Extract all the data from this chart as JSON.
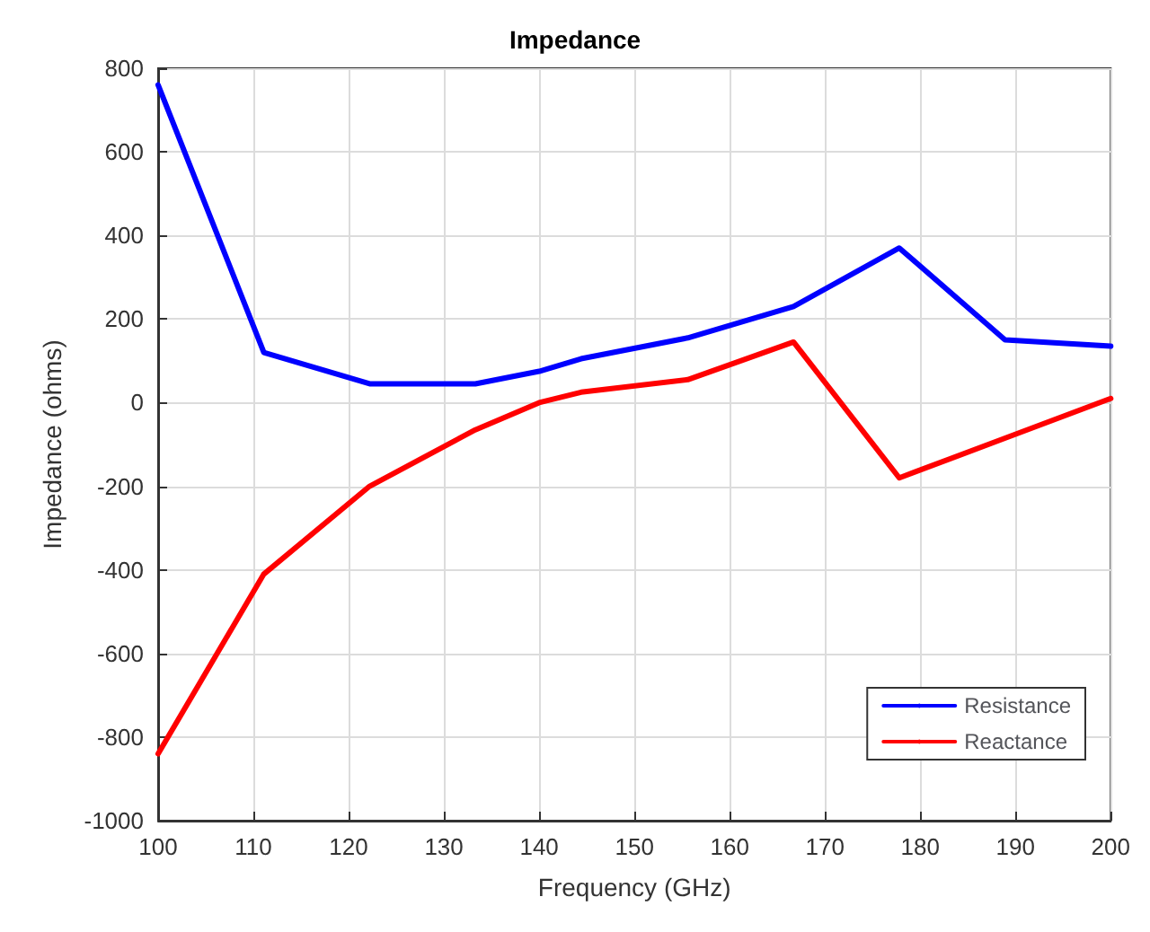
{
  "chart_data": {
    "type": "line",
    "title": "Impedance",
    "xlabel": "Frequency (GHz)",
    "ylabel": "Impedance (ohms)",
    "x": [
      100,
      111.1,
      122.2,
      133.3,
      140,
      144.4,
      155.6,
      166.7,
      177.8,
      188.9,
      200
    ],
    "series": [
      {
        "name": "Resistance",
        "color": "#0000ff",
        "values": [
          760,
          120,
          45,
          45,
          75,
          105,
          155,
          230,
          370,
          150,
          135
        ]
      },
      {
        "name": "Reactance",
        "color": "#ff0000",
        "values": [
          -840,
          -410,
          -200,
          -65,
          0,
          25,
          55,
          145,
          -180,
          -85,
          10
        ]
      }
    ],
    "xlim": [
      100,
      200
    ],
    "xticks": [
      100,
      110,
      120,
      130,
      140,
      150,
      160,
      170,
      180,
      190,
      200
    ],
    "ylim": [
      -1000,
      800
    ],
    "yticks": [
      -1000,
      -800,
      -600,
      -400,
      -200,
      0,
      200,
      400,
      600,
      800
    ],
    "grid": true,
    "legend": "bottom right",
    "marker": "none",
    "line_style": "solid"
  }
}
